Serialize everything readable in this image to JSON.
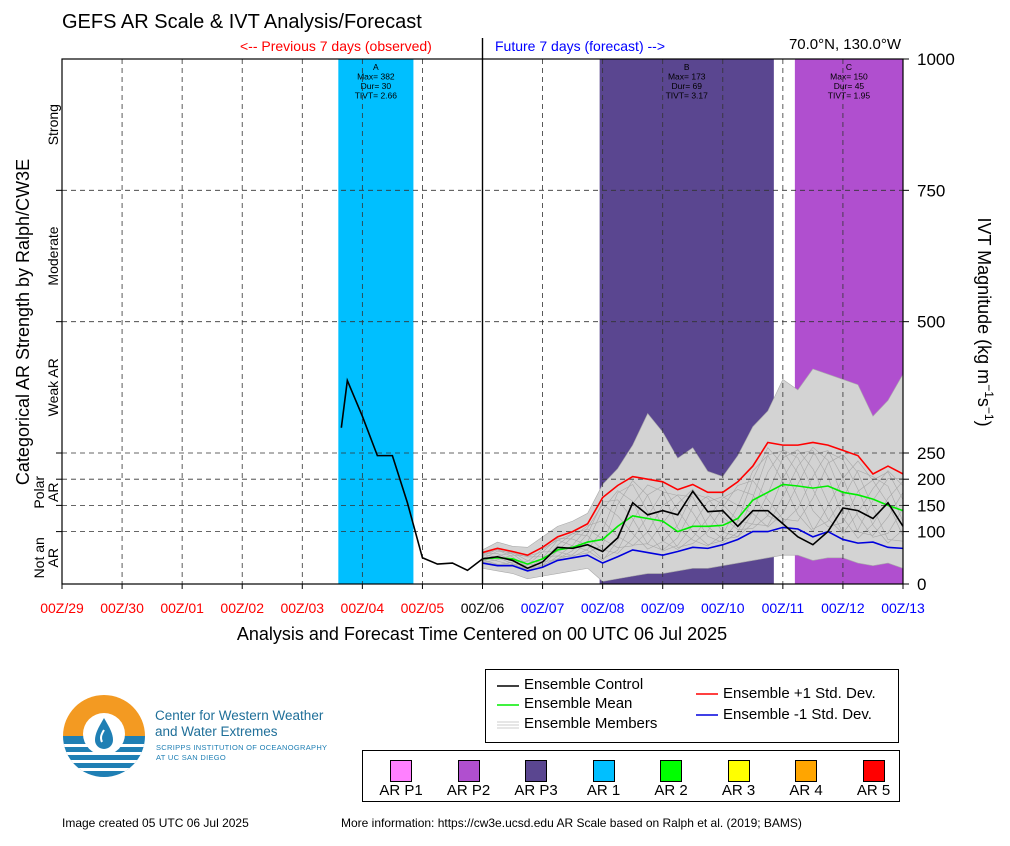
{
  "header": {
    "title": "GEFS AR Scale & IVT Analysis/Forecast",
    "previous_label": "<-- Previous 7 days (observed)",
    "future_label": "Future 7 days (forecast) -->",
    "location": "70.0°N, 130.0°W"
  },
  "left_axis": {
    "title": "Categorical AR Strength by Ralph/CW3E",
    "categories": [
      {
        "name": "Strong",
        "lines": [
          "Strong"
        ]
      },
      {
        "name": "Moderate",
        "lines": [
          "Moderate"
        ]
      },
      {
        "name": "Weak AR",
        "lines": [
          "Weak AR"
        ]
      },
      {
        "name": "Polar AR",
        "lines": [
          "Polar",
          "AR"
        ]
      },
      {
        "name": "Not an AR",
        "lines": [
          "Not an",
          "AR"
        ]
      }
    ]
  },
  "chart_data": {
    "type": "line",
    "xlabel": "Analysis and Forecast Time Centered on 00 UTC 06 Jul 2025",
    "ylabel": "IVT Magnitude (kg m⁻¹s⁻¹)",
    "x_ticks": [
      {
        "label": "00Z/29",
        "day": 0,
        "color": "#ff0000"
      },
      {
        "label": "00Z/30",
        "day": 1,
        "color": "#ff0000"
      },
      {
        "label": "00Z/01",
        "day": 2,
        "color": "#ff0000"
      },
      {
        "label": "00Z/02",
        "day": 3,
        "color": "#ff0000"
      },
      {
        "label": "00Z/03",
        "day": 4,
        "color": "#ff0000"
      },
      {
        "label": "00Z/04",
        "day": 5,
        "color": "#ff0000"
      },
      {
        "label": "00Z/05",
        "day": 6,
        "color": "#ff0000"
      },
      {
        "label": "00Z/06",
        "day": 7,
        "color": "#000000"
      },
      {
        "label": "00Z/07",
        "day": 8,
        "color": "#0000ff"
      },
      {
        "label": "00Z/08",
        "day": 9,
        "color": "#0000ff"
      },
      {
        "label": "00Z/09",
        "day": 10,
        "color": "#0000ff"
      },
      {
        "label": "00Z/10",
        "day": 11,
        "color": "#0000ff"
      },
      {
        "label": "00Z/11",
        "day": 12,
        "color": "#0000ff"
      },
      {
        "label": "00Z/12",
        "day": 13,
        "color": "#0000ff"
      },
      {
        "label": "00Z/13",
        "day": 14,
        "color": "#0000ff"
      }
    ],
    "xlim": [
      0,
      14
    ],
    "y_ticks": [
      0,
      100,
      150,
      200,
      250,
      500,
      750,
      1000
    ],
    "y_dashed": [
      100,
      150,
      200,
      250,
      500,
      750
    ],
    "y_scale": "piecewise-linear (0–250 and 250–1000 segments)",
    "ylim": [
      0,
      1000
    ],
    "ar_events": [
      {
        "letter": "A",
        "start": 4.6,
        "end": 5.85,
        "color": "#00bfff",
        "max": "Max= 382",
        "dur": "Dur= 30",
        "tivt": "TIVT= 2.66"
      },
      {
        "letter": "B",
        "start": 8.95,
        "end": 11.85,
        "color": "#5a4690",
        "max": "Max= 173",
        "dur": "Dur= 69",
        "tivt": "TIVT= 3.17"
      },
      {
        "letter": "C",
        "start": 12.2,
        "end": 14.0,
        "color": "#b04fcf",
        "max": "Max= 150",
        "dur": "Dur= 45",
        "tivt": "TIVT= 1.95"
      }
    ],
    "observed": {
      "x": [
        4.65,
        4.75,
        5.0,
        5.25,
        5.5,
        5.75,
        6.0,
        6.25,
        6.5,
        6.75,
        7.0
      ],
      "y": [
        298,
        388,
        320,
        245,
        245,
        155,
        50,
        38,
        40,
        26,
        48
      ]
    },
    "forecast_x": [
      7.0,
      7.25,
      7.5,
      7.75,
      8.0,
      8.25,
      8.5,
      8.75,
      9.0,
      9.25,
      9.5,
      9.75,
      10.0,
      10.25,
      10.5,
      10.75,
      11.0,
      11.25,
      11.5,
      11.75,
      12.0,
      12.25,
      12.5,
      12.75,
      13.0,
      13.25,
      13.5,
      13.75,
      14.0
    ],
    "series": [
      {
        "name": "Ensemble Control",
        "color": "#000000",
        "values": [
          48,
          52,
          45,
          30,
          42,
          70,
          68,
          75,
          62,
          88,
          155,
          132,
          140,
          132,
          177,
          138,
          140,
          110,
          140,
          140,
          115,
          90,
          75,
          100,
          145,
          140,
          125,
          155,
          110
        ]
      },
      {
        "name": "Ensemble Mean",
        "color": "#00ee00",
        "values": [
          48,
          50,
          48,
          38,
          48,
          65,
          70,
          80,
          85,
          110,
          130,
          125,
          120,
          100,
          110,
          110,
          112,
          125,
          160,
          175,
          190,
          187,
          183,
          187,
          175,
          170,
          162,
          150,
          140
        ]
      },
      {
        "name": "Ensemble +1 Std. Dev.",
        "color": "#ff0000",
        "values": [
          60,
          68,
          62,
          55,
          70,
          90,
          100,
          115,
          165,
          188,
          205,
          200,
          195,
          180,
          190,
          175,
          175,
          195,
          225,
          270,
          265,
          265,
          270,
          265,
          255,
          245,
          210,
          225,
          210
        ]
      },
      {
        "name": "Ensemble -1 Std. Dev.",
        "color": "#0000dd",
        "values": [
          40,
          35,
          35,
          25,
          32,
          45,
          50,
          55,
          40,
          52,
          65,
          60,
          55,
          62,
          70,
          68,
          75,
          85,
          100,
          100,
          108,
          105,
          90,
          100,
          85,
          78,
          80,
          70,
          68
        ]
      }
    ],
    "members_label": "Ensemble Members",
    "members_envelope": {
      "upper": [
        65,
        80,
        72,
        70,
        90,
        110,
        120,
        135,
        190,
        220,
        265,
        325,
        290,
        240,
        260,
        215,
        205,
        245,
        300,
        330,
        390,
        370,
        410,
        400,
        390,
        380,
        320,
        350,
        400
      ],
      "lower": [
        30,
        25,
        20,
        10,
        15,
        20,
        25,
        30,
        5,
        10,
        15,
        20,
        20,
        25,
        30,
        30,
        35,
        40,
        45,
        50,
        55,
        55,
        45,
        50,
        50,
        40,
        35,
        40,
        30
      ]
    },
    "legend": [
      "Ensemble Control",
      "Ensemble Mean",
      "Ensemble Members",
      "Ensemble +1 Std. Dev.",
      "Ensemble -1 Std. Dev."
    ]
  },
  "ar_scale_legend": [
    {
      "label": "AR P1",
      "color": "#ff80ff"
    },
    {
      "label": "AR P2",
      "color": "#b04fcf"
    },
    {
      "label": "AR P3",
      "color": "#5a4690"
    },
    {
      "label": "AR 1",
      "color": "#00bfff"
    },
    {
      "label": "AR 2",
      "color": "#00ff00"
    },
    {
      "label": "AR 3",
      "color": "#ffff00"
    },
    {
      "label": "AR 4",
      "color": "#ffa500"
    },
    {
      "label": "AR 5",
      "color": "#ff0000"
    }
  ],
  "logo": {
    "line1": "Center for Western Weather",
    "line2": "and Water Extremes",
    "sub1": "SCRIPPS INSTITUTION OF OCEANOGRAPHY",
    "sub2": "AT UC SAN DIEGO",
    "orange": "#f39a22",
    "blue": "#1f7fb4"
  },
  "footer": {
    "created": "Image created 05 UTC 06 Jul 2025",
    "more_info": "More information: https://cw3e.ucsd.edu AR Scale based on Ralph et al. (2019; BAMS)"
  }
}
